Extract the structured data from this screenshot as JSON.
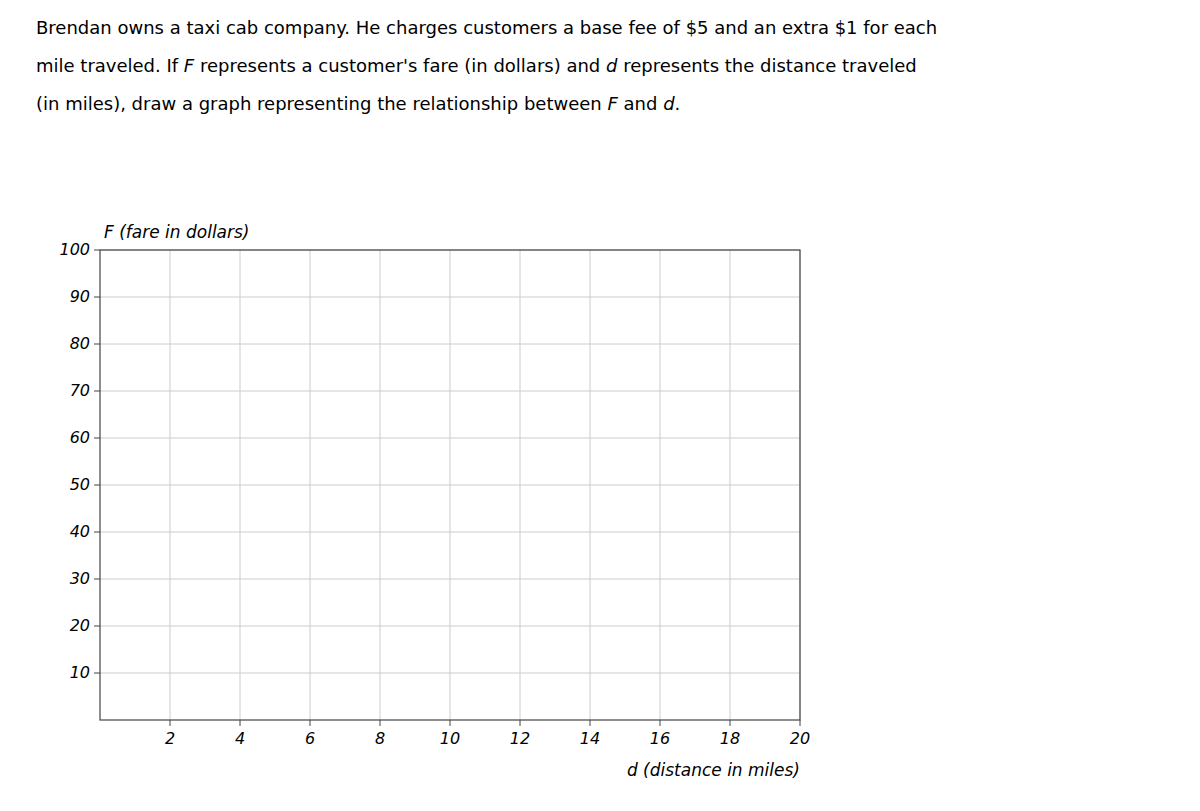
{
  "chart_data": {
    "type": "line",
    "annotations": [
      [
        "Brendan owns a taxi cab company. He charges customers a base fee of $5 and an extra $1 for each"
      ],
      [
        "mile traveled. If ",
        "F",
        " represents a customer's fare (in dollars) and ",
        "d",
        " represents the distance traveled"
      ],
      [
        "(in miles), draw a graph representing the relationship between ",
        "F",
        " and ",
        "d",
        "."
      ]
    ],
    "y_label": "F (fare in dollars)",
    "x_label": "d (distance in miles)",
    "xlim": [
      0,
      20
    ],
    "ylim": [
      0,
      100
    ],
    "xticks": [
      2,
      4,
      6,
      8,
      10,
      12,
      14,
      16,
      18,
      20
    ],
    "yticks": [
      10,
      20,
      30,
      40,
      50,
      60,
      70,
      80,
      90,
      100
    ],
    "grid": true
  }
}
